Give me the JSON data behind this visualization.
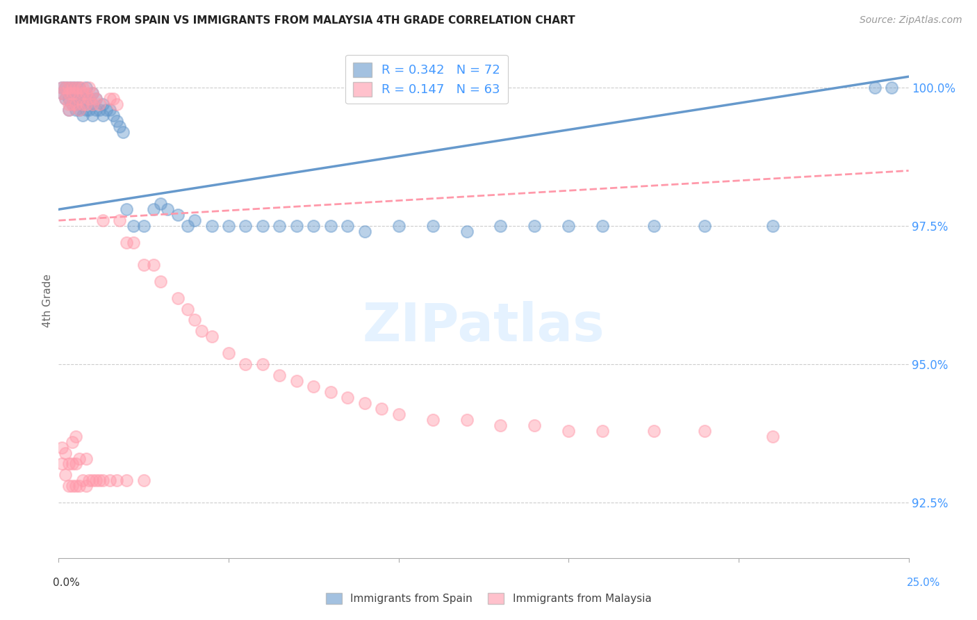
{
  "title": "IMMIGRANTS FROM SPAIN VS IMMIGRANTS FROM MALAYSIA 4TH GRADE CORRELATION CHART",
  "source": "Source: ZipAtlas.com",
  "ylabel": "4th Grade",
  "ytick_labels": [
    "92.5%",
    "95.0%",
    "97.5%",
    "100.0%"
  ],
  "ytick_values": [
    0.925,
    0.95,
    0.975,
    1.0
  ],
  "xlim": [
    0.0,
    0.25
  ],
  "ylim": [
    0.915,
    1.008
  ],
  "spain_color": "#6699CC",
  "malaysia_color": "#FF99AA",
  "spain_R": 0.342,
  "spain_N": 72,
  "malaysia_R": 0.147,
  "malaysia_N": 63,
  "watermark": "ZIPatlas",
  "spain_x": [
    0.001,
    0.001,
    0.002,
    0.002,
    0.003,
    0.003,
    0.003,
    0.003,
    0.004,
    0.004,
    0.004,
    0.005,
    0.005,
    0.005,
    0.005,
    0.005,
    0.006,
    0.006,
    0.006,
    0.007,
    0.007,
    0.007,
    0.008,
    0.008,
    0.008,
    0.009,
    0.009,
    0.01,
    0.01,
    0.01,
    0.011,
    0.011,
    0.012,
    0.013,
    0.013,
    0.014,
    0.015,
    0.016,
    0.017,
    0.018,
    0.019,
    0.02,
    0.022,
    0.025,
    0.028,
    0.03,
    0.032,
    0.035,
    0.038,
    0.04,
    0.045,
    0.05,
    0.055,
    0.06,
    0.065,
    0.07,
    0.075,
    0.08,
    0.085,
    0.09,
    0.1,
    0.11,
    0.12,
    0.13,
    0.14,
    0.15,
    0.16,
    0.175,
    0.19,
    0.21,
    0.24,
    0.245
  ],
  "spain_y": [
    0.999,
    1.0,
    0.998,
    1.0,
    0.996,
    0.998,
    0.999,
    1.0,
    0.997,
    0.999,
    1.0,
    0.996,
    0.997,
    0.998,
    0.999,
    1.0,
    0.996,
    0.998,
    1.0,
    0.995,
    0.997,
    0.999,
    0.996,
    0.998,
    1.0,
    0.996,
    0.998,
    0.995,
    0.997,
    0.999,
    0.996,
    0.998,
    0.996,
    0.995,
    0.997,
    0.996,
    0.996,
    0.995,
    0.994,
    0.993,
    0.992,
    0.978,
    0.975,
    0.975,
    0.978,
    0.979,
    0.978,
    0.977,
    0.975,
    0.976,
    0.975,
    0.975,
    0.975,
    0.975,
    0.975,
    0.975,
    0.975,
    0.975,
    0.975,
    0.974,
    0.975,
    0.975,
    0.974,
    0.975,
    0.975,
    0.975,
    0.975,
    0.975,
    0.975,
    0.975,
    1.0,
    1.0
  ],
  "malaysia_x": [
    0.001,
    0.001,
    0.002,
    0.002,
    0.003,
    0.003,
    0.003,
    0.003,
    0.004,
    0.004,
    0.004,
    0.005,
    0.005,
    0.005,
    0.006,
    0.006,
    0.006,
    0.007,
    0.007,
    0.007,
    0.008,
    0.008,
    0.009,
    0.009,
    0.01,
    0.01,
    0.011,
    0.012,
    0.013,
    0.015,
    0.016,
    0.017,
    0.018,
    0.02,
    0.022,
    0.025,
    0.028,
    0.03,
    0.035,
    0.038,
    0.04,
    0.042,
    0.045,
    0.05,
    0.055,
    0.06,
    0.065,
    0.07,
    0.075,
    0.08,
    0.085,
    0.09,
    0.095,
    0.1,
    0.11,
    0.12,
    0.13,
    0.14,
    0.15,
    0.16,
    0.175,
    0.19,
    0.21
  ],
  "malaysia_y": [
    0.999,
    1.0,
    0.998,
    1.0,
    0.997,
    0.999,
    1.0,
    0.996,
    0.997,
    0.999,
    1.0,
    0.997,
    0.999,
    1.0,
    0.996,
    0.998,
    1.0,
    0.997,
    0.999,
    1.0,
    0.997,
    0.999,
    0.998,
    1.0,
    0.997,
    0.999,
    0.998,
    0.997,
    0.976,
    0.998,
    0.998,
    0.997,
    0.976,
    0.972,
    0.972,
    0.968,
    0.968,
    0.965,
    0.962,
    0.96,
    0.958,
    0.956,
    0.955,
    0.952,
    0.95,
    0.95,
    0.948,
    0.947,
    0.946,
    0.945,
    0.944,
    0.943,
    0.942,
    0.941,
    0.94,
    0.94,
    0.939,
    0.939,
    0.938,
    0.938,
    0.938,
    0.938,
    0.937
  ],
  "malaysia_low_x": [
    0.001,
    0.001,
    0.002,
    0.002,
    0.003,
    0.003,
    0.004,
    0.004,
    0.004,
    0.005,
    0.005,
    0.005,
    0.006,
    0.006,
    0.007,
    0.008,
    0.008,
    0.009,
    0.01,
    0.011,
    0.012,
    0.013,
    0.015,
    0.017,
    0.02,
    0.025
  ],
  "malaysia_low_y": [
    0.932,
    0.935,
    0.93,
    0.934,
    0.928,
    0.932,
    0.928,
    0.932,
    0.936,
    0.928,
    0.932,
    0.937,
    0.928,
    0.933,
    0.929,
    0.928,
    0.933,
    0.929,
    0.929,
    0.929,
    0.929,
    0.929,
    0.929,
    0.929,
    0.929,
    0.929
  ]
}
